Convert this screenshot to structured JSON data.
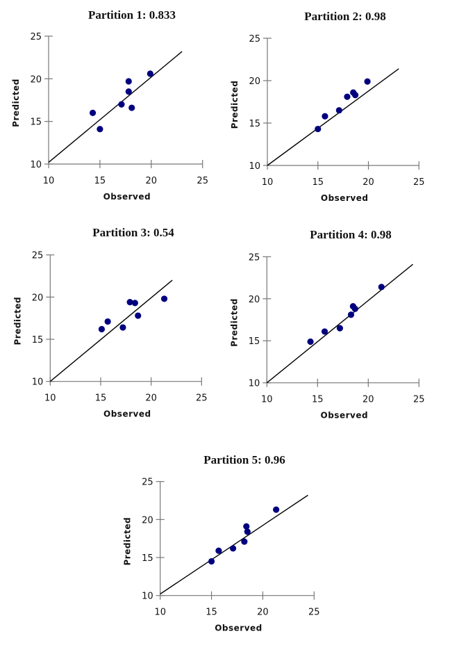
{
  "colors": {
    "point": "#00007f",
    "fit_line": "#000000",
    "axis": "#777777",
    "background": "#ffffff"
  },
  "chart_data": [
    {
      "type": "scatter",
      "title": "Partition 1: 0.833",
      "xlabel": "Observed",
      "ylabel": "Predicted",
      "xlim": [
        10,
        25
      ],
      "ylim": [
        10,
        25
      ],
      "xticks": [
        "10",
        "15",
        "20",
        "25"
      ],
      "yticks": [
        "10",
        "15",
        "20",
        "25"
      ],
      "grid": false,
      "x": [
        14.3,
        15.0,
        17.1,
        17.8,
        17.8,
        18.1,
        19.9
      ],
      "y": [
        16.0,
        14.1,
        17.0,
        19.7,
        18.5,
        16.6,
        20.6
      ],
      "fit_line": {
        "x": [
          10,
          23
        ],
        "y": [
          10.2,
          23.2
        ]
      }
    },
    {
      "type": "scatter",
      "title": "Partition 2: 0.98",
      "xlabel": "Observed",
      "ylabel": "Predicted",
      "xlim": [
        10,
        25
      ],
      "ylim": [
        10,
        25
      ],
      "xticks": [
        "10",
        "15",
        "20",
        "25"
      ],
      "yticks": [
        "10",
        "15",
        "20",
        "25"
      ],
      "grid": false,
      "x": [
        15.0,
        15.7,
        17.1,
        17.9,
        18.5,
        18.7,
        19.9
      ],
      "y": [
        14.3,
        15.8,
        16.5,
        18.1,
        18.6,
        18.3,
        19.9
      ],
      "fit_line": {
        "x": [
          10,
          23
        ],
        "y": [
          10.0,
          21.4
        ]
      }
    },
    {
      "type": "scatter",
      "title": "Partition 3: 0.54",
      "xlabel": "Observed",
      "ylabel": "Predicted",
      "xlim": [
        10,
        25
      ],
      "ylim": [
        10,
        25
      ],
      "xticks": [
        "10",
        "15",
        "20",
        "25"
      ],
      "yticks": [
        "10",
        "15",
        "20",
        "25"
      ],
      "grid": false,
      "x": [
        15.1,
        15.7,
        17.2,
        17.9,
        18.4,
        18.7,
        21.3
      ],
      "y": [
        16.2,
        17.1,
        16.4,
        19.4,
        19.3,
        17.8,
        19.8
      ],
      "fit_line": {
        "x": [
          10,
          22.1
        ],
        "y": [
          10.0,
          22.0
        ]
      }
    },
    {
      "type": "scatter",
      "title": "Partition 4: 0.98",
      "xlabel": "Observed",
      "ylabel": "Predicted",
      "xlim": [
        10,
        25
      ],
      "ylim": [
        10,
        25
      ],
      "xticks": [
        "10",
        "15",
        "20",
        "25"
      ],
      "yticks": [
        "10",
        "15",
        "20",
        "25"
      ],
      "grid": false,
      "x": [
        14.3,
        15.7,
        17.2,
        18.3,
        18.5,
        18.7,
        21.3
      ],
      "y": [
        14.9,
        16.1,
        16.5,
        18.1,
        19.1,
        18.8,
        21.4
      ],
      "fit_line": {
        "x": [
          10,
          24.4
        ],
        "y": [
          10.0,
          24.1
        ]
      }
    },
    {
      "type": "scatter",
      "title": "Partition 5: 0.96",
      "xlabel": "Observed",
      "ylabel": "Predicted",
      "xlim": [
        10,
        25
      ],
      "ylim": [
        10,
        25
      ],
      "xticks": [
        "10",
        "15",
        "20",
        "25"
      ],
      "yticks": [
        "10",
        "15",
        "20",
        "25"
      ],
      "grid": false,
      "x": [
        15.0,
        15.7,
        17.1,
        18.2,
        18.4,
        18.5,
        21.3
      ],
      "y": [
        14.5,
        15.9,
        16.2,
        17.1,
        19.1,
        18.4,
        21.3
      ],
      "fit_line": {
        "x": [
          10,
          24.4
        ],
        "y": [
          10.2,
          23.2
        ]
      }
    }
  ]
}
